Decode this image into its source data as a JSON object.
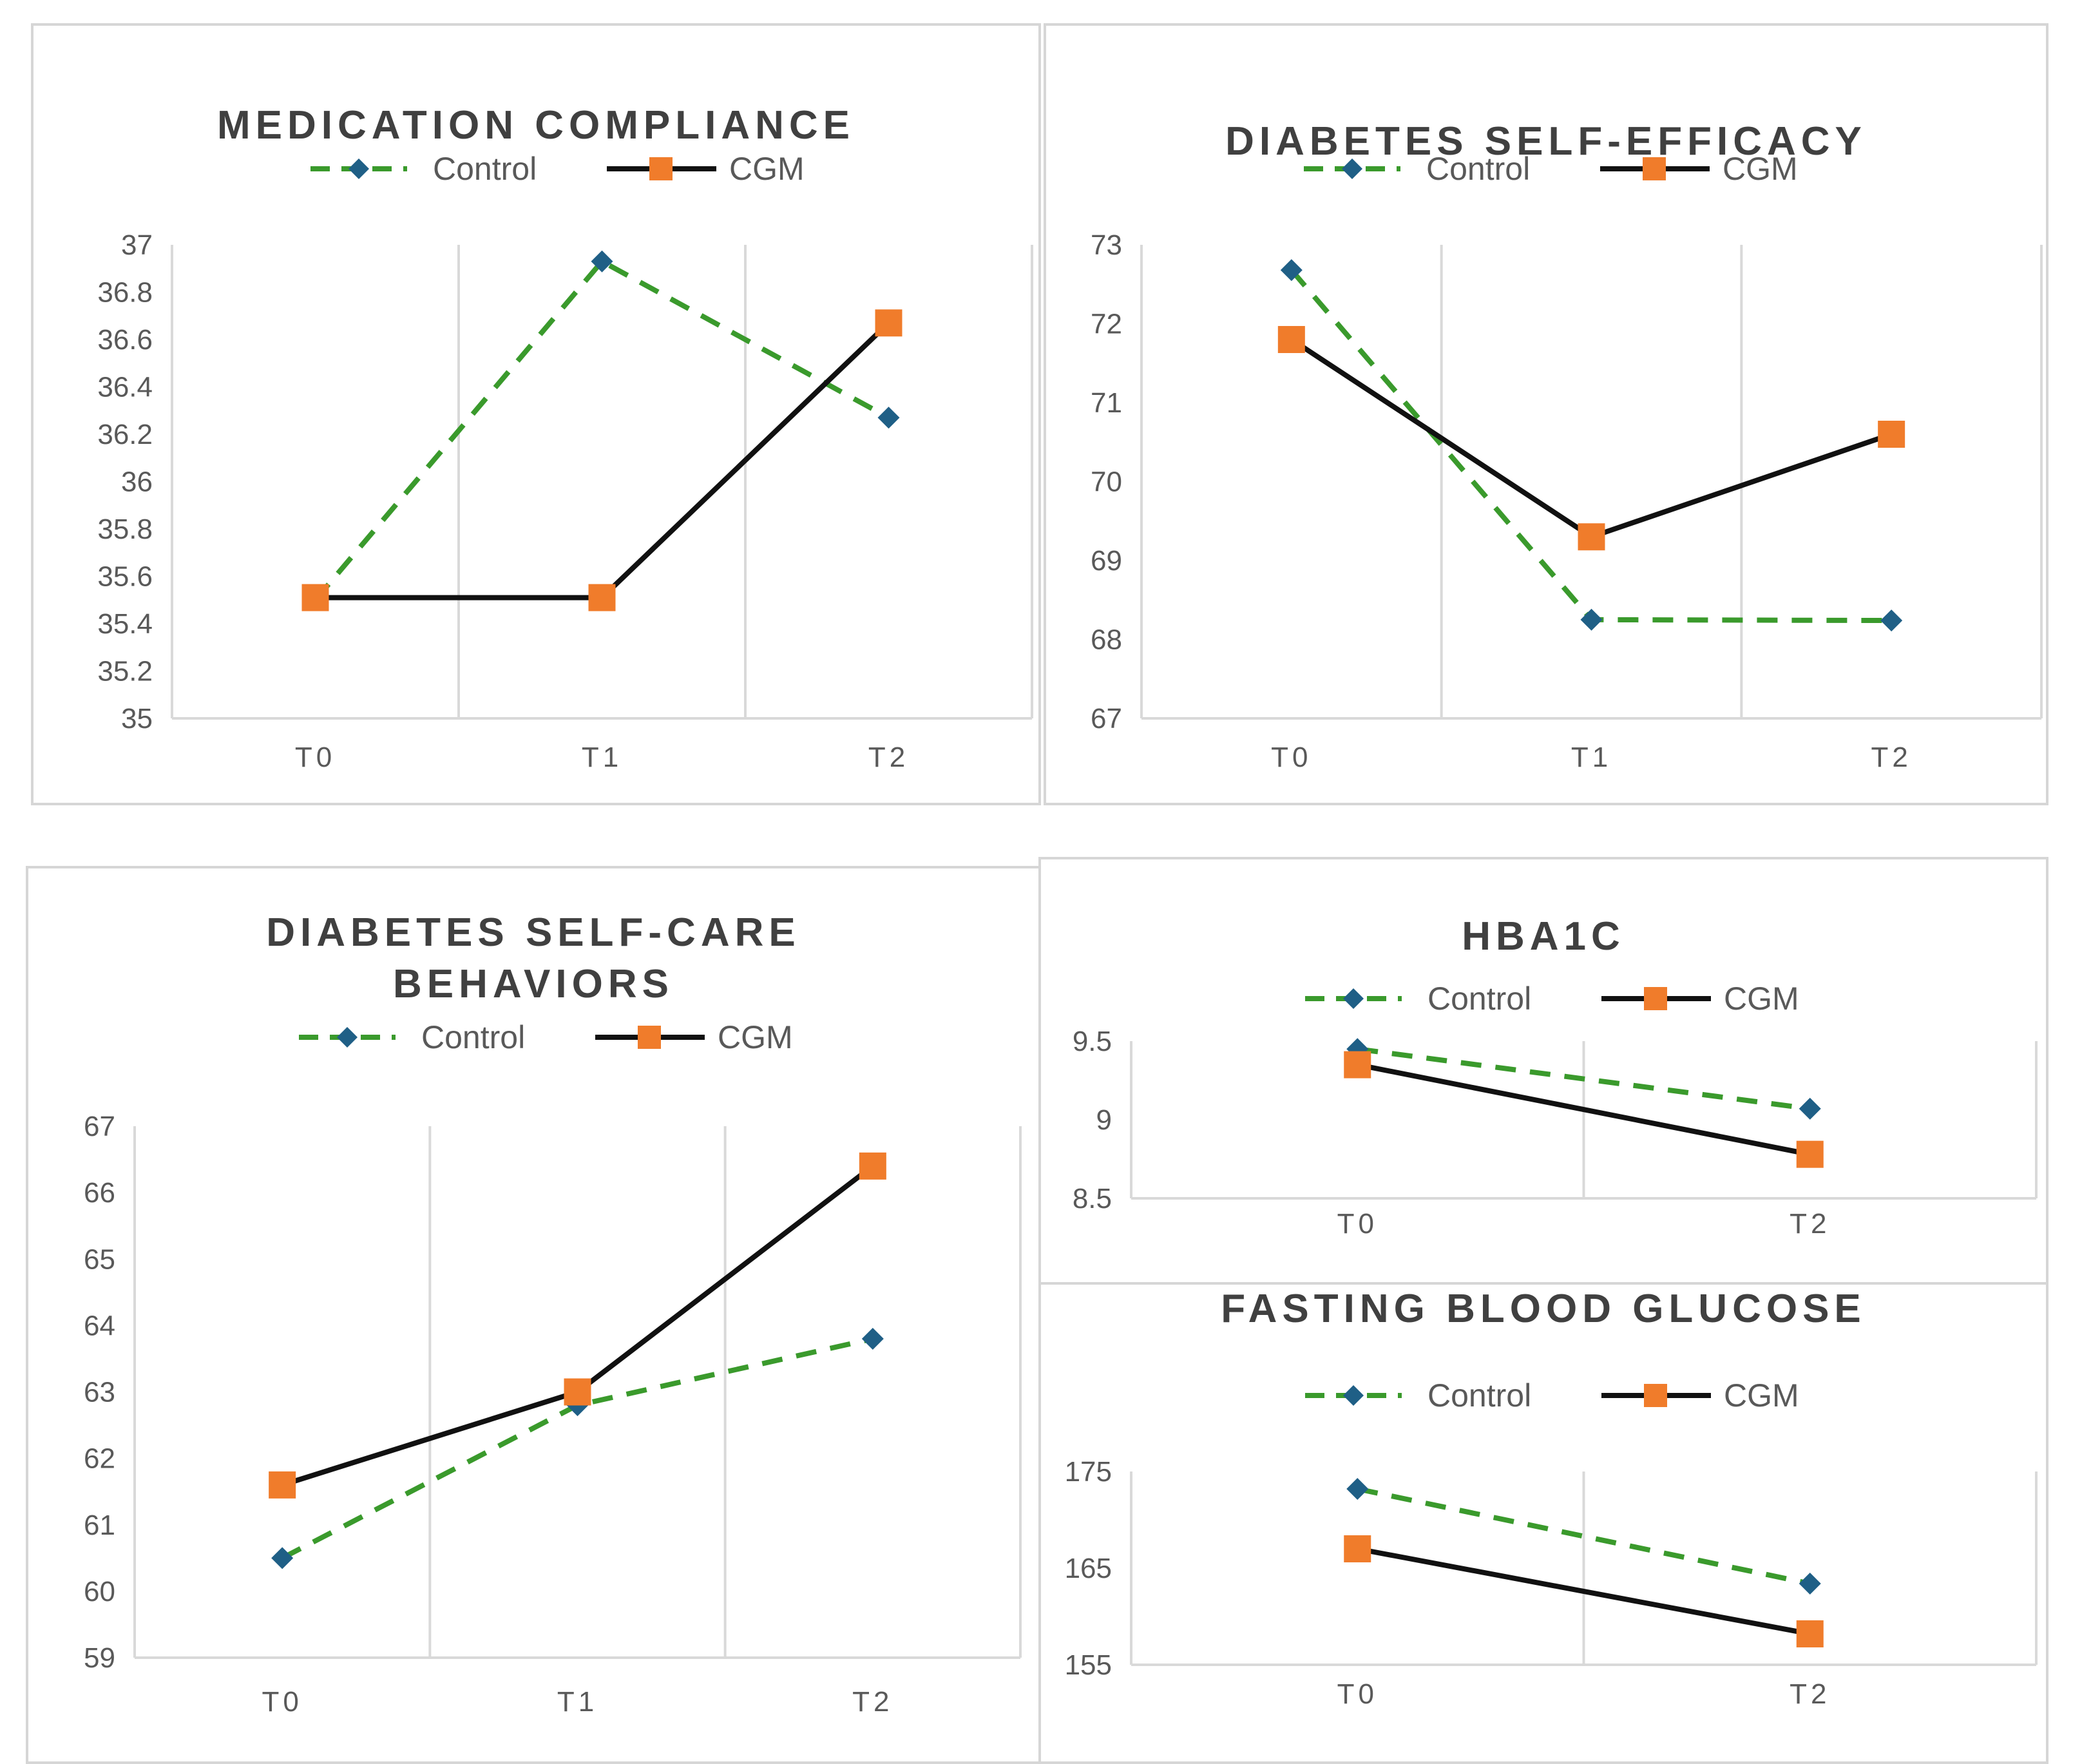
{
  "colors": {
    "control": "#3a9a2c",
    "control_marker": "#1f5f86",
    "cgm": "#111111",
    "cgm_marker": "#f07c2b"
  },
  "chart_data": [
    {
      "id": "medication",
      "type": "line",
      "title_lines": [
        "MEDICATION COMPLIANCE"
      ],
      "categories": [
        "T0",
        "T1",
        "T2"
      ],
      "yticks": [
        "37",
        "36.8",
        "36.6",
        "36.4",
        "36.2",
        "36",
        "35.8",
        "35.6",
        "35.4",
        "35.2",
        "35"
      ],
      "ylim": [
        35,
        37
      ],
      "legend": [
        "Control",
        "CGM"
      ],
      "series": [
        {
          "name": "Control",
          "values": [
            35.5,
            36.93,
            36.27
          ]
        },
        {
          "name": "CGM",
          "values": [
            35.51,
            35.51,
            36.67
          ]
        }
      ]
    },
    {
      "id": "efficacy",
      "type": "line",
      "title_lines": [
        "DIABETES SELF-EFFICACY"
      ],
      "categories": [
        "T0",
        "T1",
        "T2"
      ],
      "yticks": [
        "73",
        "72",
        "71",
        "70",
        "69",
        "68",
        "67"
      ],
      "ylim": [
        67,
        73
      ],
      "legend": [
        "Control",
        "CGM"
      ],
      "series": [
        {
          "name": "Control",
          "values": [
            72.68,
            68.25,
            68.24
          ]
        },
        {
          "name": "CGM",
          "values": [
            71.8,
            69.3,
            70.6
          ]
        }
      ]
    },
    {
      "id": "selfcare",
      "type": "line",
      "title_lines": [
        "DIABETES SELF-CARE",
        "BEHAVIORS"
      ],
      "categories": [
        "T0",
        "T1",
        "T2"
      ],
      "yticks": [
        "67",
        "66",
        "65",
        "64",
        "63",
        "62",
        "61",
        "60",
        "59"
      ],
      "ylim": [
        59,
        67
      ],
      "legend": [
        "Control",
        "CGM"
      ],
      "series": [
        {
          "name": "Control",
          "values": [
            60.5,
            62.8,
            63.8
          ]
        },
        {
          "name": "CGM",
          "values": [
            61.6,
            63.0,
            66.4
          ]
        }
      ]
    },
    {
      "id": "hba1c",
      "type": "line",
      "title_lines": [
        "HBA1C"
      ],
      "categories": [
        "T0",
        "T2"
      ],
      "yticks": [
        "9.5",
        "9",
        "8.5"
      ],
      "ylim": [
        8.5,
        9.5
      ],
      "legend": [
        "Control",
        "CGM"
      ],
      "series": [
        {
          "name": "Control",
          "values": [
            9.45,
            9.07
          ]
        },
        {
          "name": "CGM",
          "values": [
            9.35,
            8.78
          ]
        }
      ]
    },
    {
      "id": "fbg",
      "type": "line",
      "title_lines": [
        "FASTING BLOOD GLUCOSE"
      ],
      "categories": [
        "T0",
        "T2"
      ],
      "yticks": [
        "175",
        "165",
        "155"
      ],
      "ylim": [
        155,
        175
      ],
      "legend": [
        "Control",
        "CGM"
      ],
      "series": [
        {
          "name": "Control",
          "values": [
            173.2,
            163.4
          ]
        },
        {
          "name": "CGM",
          "values": [
            167.0,
            158.2
          ]
        }
      ]
    }
  ]
}
